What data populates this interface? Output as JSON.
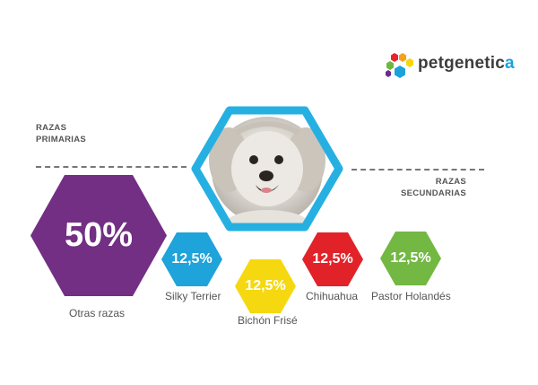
{
  "brand": {
    "name_main": "petgenetic",
    "name_accent": "a",
    "colors": [
      "#e8242c",
      "#f7a21b",
      "#f6d60d",
      "#6fb83e",
      "#1da1dc",
      "#6a2c91"
    ]
  },
  "labels": {
    "primary": [
      "RAZAS",
      "PRIMARIAS"
    ],
    "secondary": [
      "RAZAS",
      "SECUNDARIAS"
    ]
  },
  "photo": {
    "icon": "dog-photo",
    "frame_color": "#26b0e2"
  },
  "primary_breed": {
    "percent": "50%",
    "name": "Otras razas",
    "color": "#722f83"
  },
  "secondary_breeds": [
    {
      "percent": "12,5%",
      "name": "Silky Terrier",
      "color": "#1ea3da"
    },
    {
      "percent": "12,5%",
      "name": "Bichón Frisé",
      "color": "#f5d80f"
    },
    {
      "percent": "12,5%",
      "name": "Chihuahua",
      "color": "#e12329"
    },
    {
      "percent": "12,5%",
      "name": "Pastor Holandés",
      "color": "#72b843"
    }
  ]
}
